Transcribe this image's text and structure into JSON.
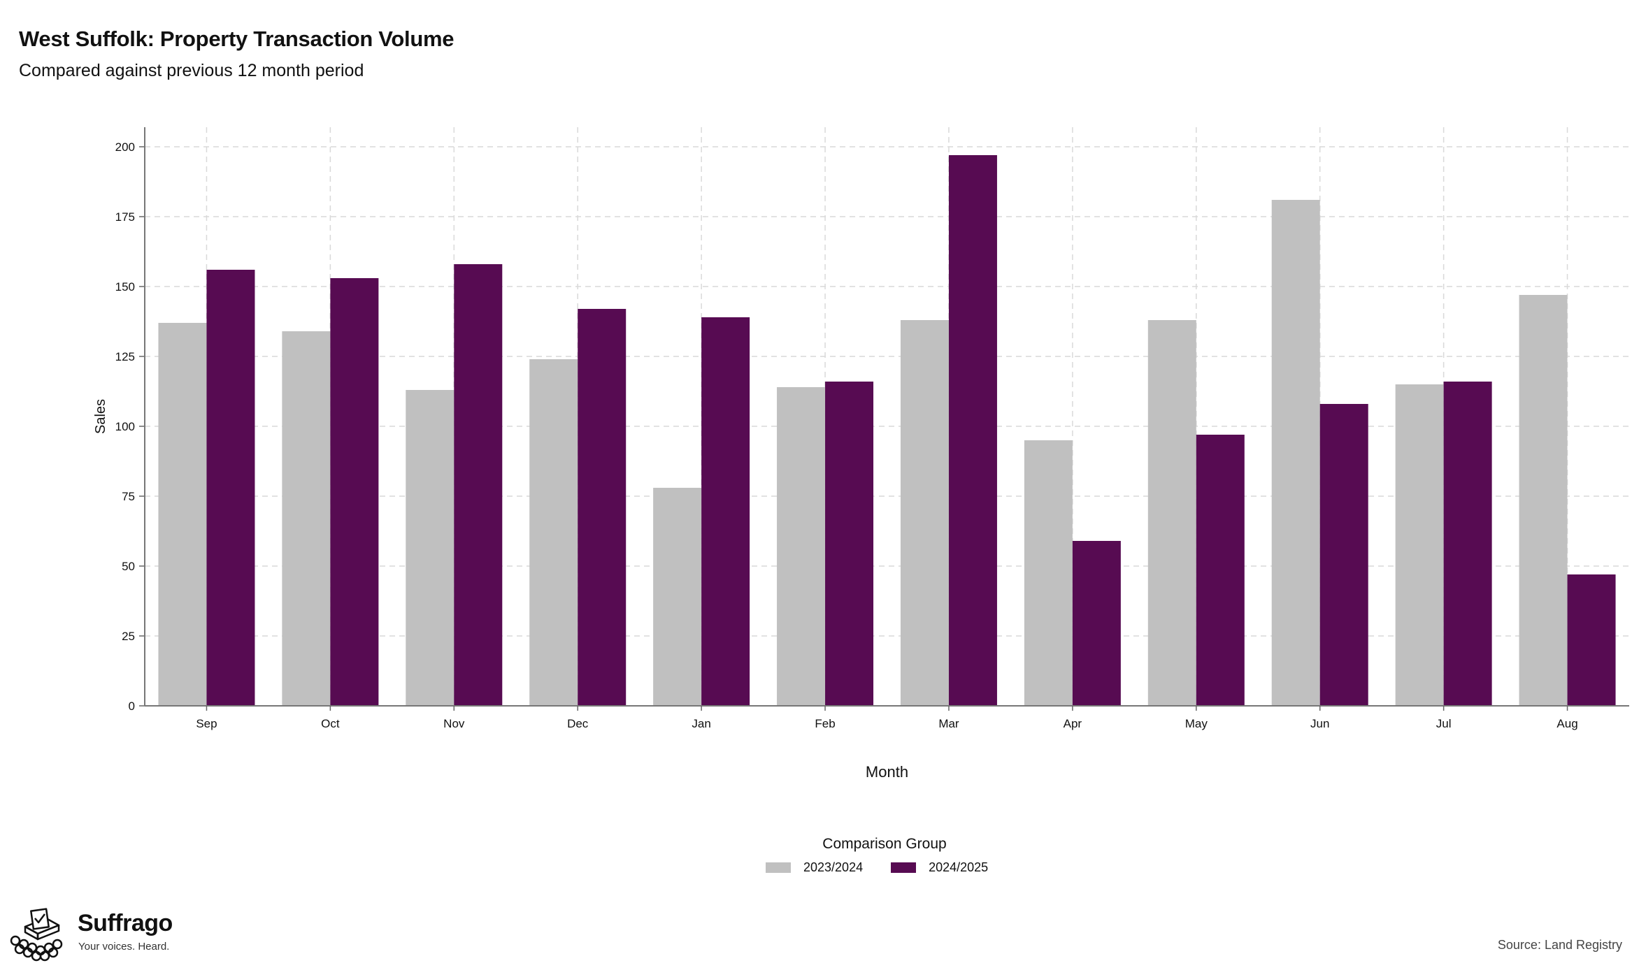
{
  "header": {
    "title": "West Suffolk: Property Transaction Volume",
    "subtitle": "Compared against previous 12 month period"
  },
  "legend": {
    "title": "Comparison Group",
    "items": [
      {
        "label": "2023/2024",
        "color": "#c0c0c0"
      },
      {
        "label": "2024/2025",
        "color": "#570b52"
      }
    ]
  },
  "brand": {
    "name": "Suffrago",
    "tagline": "Your voices. Heard.",
    "icon": "ballot-box-icon"
  },
  "source": "Source: Land Registry",
  "chart_data": {
    "type": "bar",
    "xlabel": "Month",
    "ylabel": "Sales",
    "ylim": [
      0,
      207
    ],
    "yticks": [
      0,
      25,
      50,
      75,
      100,
      125,
      150,
      175,
      200
    ],
    "grid": true,
    "legend_position": "bottom",
    "categories": [
      "Sep",
      "Oct",
      "Nov",
      "Dec",
      "Jan",
      "Feb",
      "Mar",
      "Apr",
      "May",
      "Jun",
      "Jul",
      "Aug"
    ],
    "series": [
      {
        "name": "2023/2024",
        "color": "#c0c0c0",
        "values": [
          137,
          134,
          113,
          124,
          78,
          114,
          138,
          95,
          138,
          181,
          115,
          147
        ]
      },
      {
        "name": "2024/2025",
        "color": "#570b52",
        "values": [
          156,
          153,
          158,
          142,
          139,
          116,
          197,
          59,
          97,
          108,
          116,
          47
        ]
      }
    ]
  }
}
